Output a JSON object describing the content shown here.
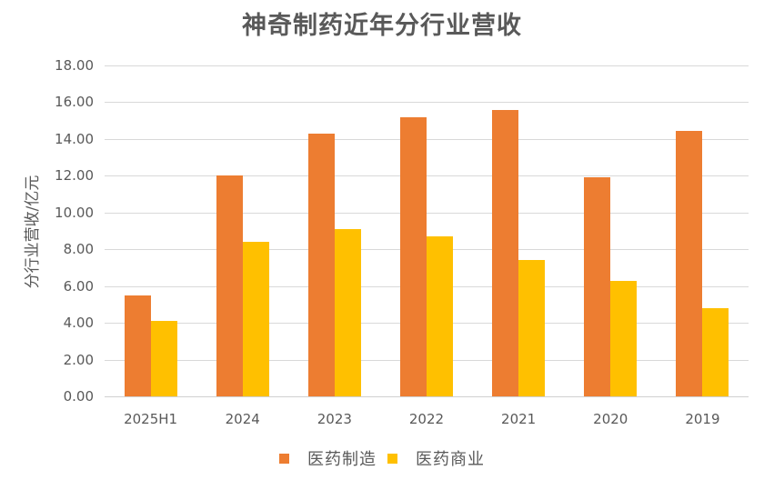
{
  "chart_data": {
    "type": "bar",
    "title": "神奇制药近年分行业营收",
    "ylabel": "分行业营收/亿元",
    "xlabel": "",
    "categories": [
      "2025H1",
      "2024",
      "2023",
      "2022",
      "2021",
      "2020",
      "2019"
    ],
    "series": [
      {
        "name": "医药制造",
        "color": "#ED7D31",
        "values": [
          5.5,
          12.0,
          14.3,
          15.2,
          15.6,
          11.9,
          14.45
        ]
      },
      {
        "name": "医药商业",
        "color": "#FFC000",
        "values": [
          4.1,
          8.4,
          9.1,
          8.7,
          7.4,
          6.3,
          4.8
        ]
      }
    ],
    "ylim": [
      0,
      18
    ],
    "ytick_step": 2,
    "ytick_decimals": 2,
    "grid": "horizontal",
    "legend_position": "bottom"
  },
  "colors": {
    "background": "#FFFFFF",
    "title_text": "#595959",
    "axis_text": "#595959",
    "gridline": "#D9D9D9",
    "series_manufacturing": "#ED7D31",
    "series_commerce": "#FFC000"
  }
}
